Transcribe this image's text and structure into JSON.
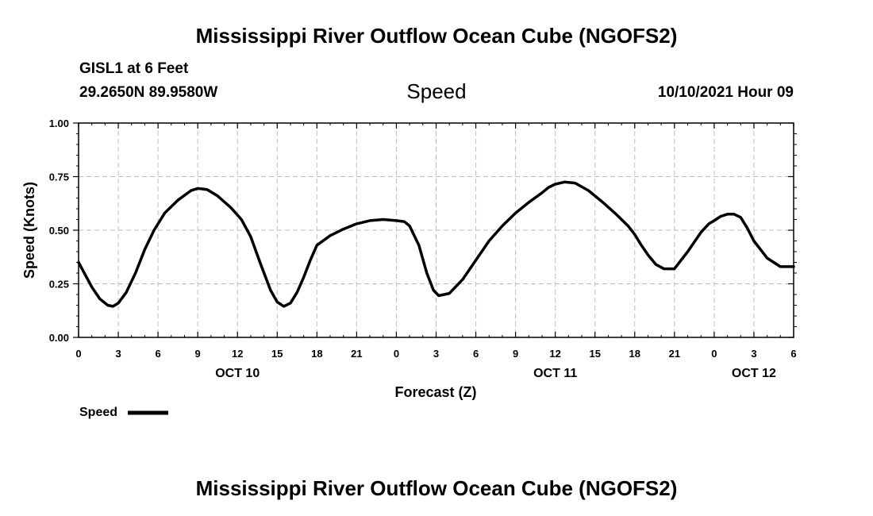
{
  "header": {
    "title": "Mississippi River Outflow Ocean Cube (NGOFS2)",
    "station": "GISL1 at 6 Feet",
    "coords": "29.2650N  89.9580W",
    "variable": "Speed",
    "datetime": "10/10/2021 Hour 09"
  },
  "footer": {
    "title": "Mississippi River Outflow Ocean Cube (NGOFS2)"
  },
  "legend": {
    "label": "Speed"
  },
  "chart_data": {
    "type": "line",
    "title": "Speed",
    "xlabel": "Forecast (Z)",
    "ylabel": "Speed (Knots)",
    "ylim": [
      0,
      1
    ],
    "xlim_hours": [
      0,
      54
    ],
    "yticks": [
      0.0,
      0.25,
      0.5,
      0.75,
      1.0
    ],
    "ytick_labels": [
      "0.00",
      "0.25",
      "0.50",
      "0.75",
      "1.00"
    ],
    "xtick_hours": [
      0,
      3,
      6,
      9,
      12,
      15,
      18,
      21,
      24,
      27,
      30,
      33,
      36,
      39,
      42,
      45,
      48,
      51,
      54
    ],
    "xtick_labels": [
      "0",
      "3",
      "6",
      "9",
      "12",
      "15",
      "18",
      "21",
      "0",
      "3",
      "6",
      "9",
      "12",
      "15",
      "18",
      "21",
      "0",
      "3",
      "6"
    ],
    "date_labels": [
      {
        "hour": 12,
        "label": "OCT 10"
      },
      {
        "hour": 36,
        "label": "OCT 11"
      },
      {
        "hour": 51,
        "label": "OCT 12"
      }
    ],
    "grid": true,
    "legend_position": "bottom-left",
    "series": [
      {
        "name": "Speed",
        "x_hours": [
          0,
          1,
          1.6,
          2.2,
          2.6,
          3,
          3.6,
          4.3,
          5,
          5.7,
          6.5,
          7.5,
          8.5,
          9,
          9.7,
          10.5,
          11.5,
          12.3,
          13,
          13.7,
          14.5,
          15,
          15.5,
          16,
          16.5,
          17,
          17.5,
          18,
          19,
          20,
          21,
          22,
          23,
          24,
          24.6,
          25,
          25.7,
          26.3,
          26.8,
          27.2,
          28,
          29,
          30,
          31,
          32,
          33,
          34,
          35,
          35.5,
          36,
          36.7,
          37.5,
          38.5,
          39.5,
          40.5,
          41.5,
          42,
          42.5,
          43,
          43.6,
          44.2,
          45,
          46,
          47,
          47.6,
          48,
          48.5,
          49,
          49.5,
          50,
          50.5,
          51,
          52,
          53,
          54
        ],
        "values": [
          0.35,
          0.235,
          0.18,
          0.15,
          0.145,
          0.16,
          0.21,
          0.3,
          0.41,
          0.5,
          0.58,
          0.64,
          0.685,
          0.695,
          0.69,
          0.66,
          0.605,
          0.55,
          0.47,
          0.35,
          0.22,
          0.165,
          0.145,
          0.16,
          0.21,
          0.28,
          0.36,
          0.43,
          0.475,
          0.505,
          0.53,
          0.545,
          0.55,
          0.545,
          0.54,
          0.52,
          0.43,
          0.3,
          0.22,
          0.195,
          0.205,
          0.27,
          0.36,
          0.45,
          0.52,
          0.58,
          0.63,
          0.675,
          0.7,
          0.715,
          0.725,
          0.72,
          0.685,
          0.635,
          0.58,
          0.52,
          0.48,
          0.43,
          0.385,
          0.34,
          0.32,
          0.32,
          0.4,
          0.49,
          0.53,
          0.545,
          0.565,
          0.575,
          0.575,
          0.56,
          0.51,
          0.45,
          0.37,
          0.33,
          0.33
        ]
      }
    ]
  }
}
